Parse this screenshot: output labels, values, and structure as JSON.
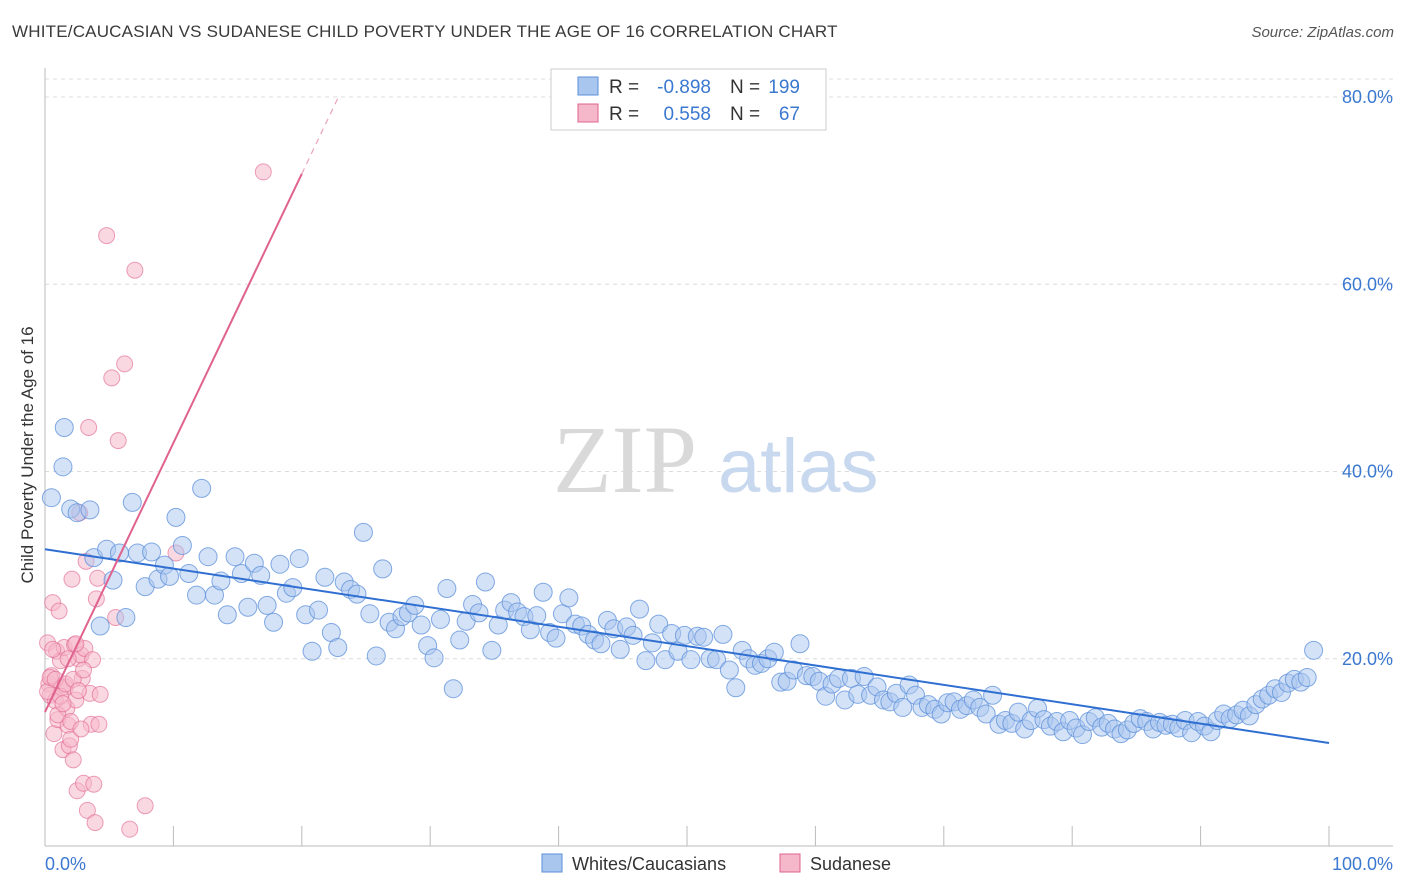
{
  "title": "WHITE/CAUCASIAN VS SUDANESE CHILD POVERTY UNDER THE AGE OF 16 CORRELATION CHART",
  "source": "Source: ZipAtlas.com",
  "watermark": {
    "zip": "ZIP",
    "atlas": "atlas"
  },
  "colors": {
    "blue": "#5b8fd9",
    "blue_fill": "#a9c6ef",
    "pink": "#e0628e",
    "pink_fill": "#f5b8cb",
    "axis_text": "#3b78d0",
    "grid": "#d8d8d8"
  },
  "legend": {
    "rows": [
      {
        "r_label": "R =",
        "r_value": "-0.898",
        "n_label": "N =",
        "n_value": "199"
      },
      {
        "r_label": "R =",
        "r_value": "0.558",
        "n_label": "N =",
        "n_value": "67"
      }
    ]
  },
  "bottom_legend": [
    "Whites/Caucasians",
    "Sudanese"
  ],
  "chart_data": {
    "type": "scatter",
    "ylabel": "Child Poverty Under the Age of 16",
    "xlim": [
      0,
      100
    ],
    "ylim": [
      0,
      82
    ],
    "y_ticks": [
      20,
      40,
      60,
      80
    ],
    "y_tick_labels": [
      "20.0%",
      "40.0%",
      "60.0%",
      "80.0%"
    ],
    "x_tick_labels": [
      "0.0%",
      "100.0%"
    ],
    "grid": true,
    "series": [
      {
        "name": "Whites/Caucasians",
        "trend": {
          "x": [
            0,
            100
          ],
          "y": [
            31.7,
            11.0
          ]
        },
        "points": [
          [
            0.5,
            37.2
          ],
          [
            1.4,
            40.5
          ],
          [
            1.5,
            44.7
          ],
          [
            2.0,
            36.0
          ],
          [
            2.5,
            35.6
          ],
          [
            3.5,
            35.9
          ],
          [
            3.8,
            30.8
          ],
          [
            4.3,
            23.5
          ],
          [
            4.8,
            31.7
          ],
          [
            5.3,
            28.4
          ],
          [
            5.8,
            31.3
          ],
          [
            6.3,
            24.4
          ],
          [
            6.8,
            36.7
          ],
          [
            7.2,
            31.3
          ],
          [
            7.8,
            27.7
          ],
          [
            8.3,
            31.4
          ],
          [
            8.8,
            28.5
          ],
          [
            9.3,
            30.0
          ],
          [
            9.7,
            28.8
          ],
          [
            10.2,
            35.1
          ],
          [
            10.7,
            32.1
          ],
          [
            11.2,
            29.1
          ],
          [
            11.8,
            26.8
          ],
          [
            12.2,
            38.2
          ],
          [
            12.7,
            30.9
          ],
          [
            13.2,
            26.8
          ],
          [
            13.7,
            28.3
          ],
          [
            14.2,
            24.7
          ],
          [
            14.8,
            30.9
          ],
          [
            15.3,
            29.1
          ],
          [
            15.8,
            25.5
          ],
          [
            16.3,
            30.2
          ],
          [
            16.8,
            28.9
          ],
          [
            17.3,
            25.7
          ],
          [
            17.8,
            23.9
          ],
          [
            18.3,
            30.1
          ],
          [
            18.8,
            27.0
          ],
          [
            19.3,
            27.6
          ],
          [
            19.8,
            30.7
          ],
          [
            20.3,
            24.7
          ],
          [
            20.8,
            20.8
          ],
          [
            21.3,
            25.2
          ],
          [
            21.8,
            28.7
          ],
          [
            22.3,
            22.8
          ],
          [
            22.8,
            21.2
          ],
          [
            23.3,
            28.2
          ],
          [
            23.8,
            27.4
          ],
          [
            24.3,
            26.9
          ],
          [
            24.8,
            33.5
          ],
          [
            25.3,
            24.8
          ],
          [
            25.8,
            20.3
          ],
          [
            26.3,
            29.6
          ],
          [
            26.8,
            23.9
          ],
          [
            27.3,
            23.2
          ],
          [
            27.8,
            24.5
          ],
          [
            28.3,
            24.9
          ],
          [
            28.8,
            25.7
          ],
          [
            29.3,
            23.6
          ],
          [
            29.8,
            21.4
          ],
          [
            30.3,
            20.1
          ],
          [
            30.8,
            24.2
          ],
          [
            31.3,
            27.5
          ],
          [
            31.8,
            16.8
          ],
          [
            32.3,
            22.0
          ],
          [
            32.8,
            24.0
          ],
          [
            33.3,
            25.8
          ],
          [
            33.8,
            24.9
          ],
          [
            34.3,
            28.2
          ],
          [
            34.8,
            20.9
          ],
          [
            35.3,
            23.6
          ],
          [
            35.8,
            25.2
          ],
          [
            36.3,
            26.0
          ],
          [
            36.8,
            25.0
          ],
          [
            37.3,
            24.5
          ],
          [
            37.8,
            23.1
          ],
          [
            38.3,
            24.6
          ],
          [
            38.8,
            27.1
          ],
          [
            39.3,
            22.8
          ],
          [
            39.8,
            22.2
          ],
          [
            40.3,
            24.8
          ],
          [
            40.8,
            26.5
          ],
          [
            41.3,
            23.7
          ],
          [
            41.8,
            23.5
          ],
          [
            42.3,
            22.6
          ],
          [
            42.8,
            22.0
          ],
          [
            43.3,
            21.6
          ],
          [
            43.8,
            24.1
          ],
          [
            44.3,
            23.2
          ],
          [
            44.8,
            21.0
          ],
          [
            45.3,
            23.4
          ],
          [
            45.8,
            22.5
          ],
          [
            46.3,
            25.3
          ],
          [
            46.8,
            19.8
          ],
          [
            47.3,
            21.7
          ],
          [
            47.8,
            23.7
          ],
          [
            48.3,
            19.9
          ],
          [
            48.8,
            22.7
          ],
          [
            49.3,
            20.8
          ],
          [
            49.8,
            22.5
          ],
          [
            50.3,
            19.9
          ],
          [
            50.8,
            22.4
          ],
          [
            51.3,
            22.3
          ],
          [
            51.8,
            20.0
          ],
          [
            52.3,
            19.9
          ],
          [
            52.8,
            22.6
          ],
          [
            53.3,
            18.8
          ],
          [
            53.8,
            16.9
          ],
          [
            54.3,
            20.9
          ],
          [
            54.8,
            20.0
          ],
          [
            55.3,
            19.3
          ],
          [
            55.8,
            19.5
          ],
          [
            56.3,
            20.0
          ],
          [
            56.8,
            20.7
          ],
          [
            57.3,
            17.5
          ],
          [
            57.8,
            17.6
          ],
          [
            58.3,
            18.8
          ],
          [
            58.8,
            21.6
          ],
          [
            59.3,
            18.2
          ],
          [
            59.8,
            18.1
          ],
          [
            60.3,
            17.6
          ],
          [
            60.8,
            16.0
          ],
          [
            61.3,
            17.3
          ],
          [
            61.8,
            17.9
          ],
          [
            62.3,
            15.6
          ],
          [
            62.8,
            17.9
          ],
          [
            63.3,
            16.2
          ],
          [
            63.8,
            18.1
          ],
          [
            64.3,
            16.1
          ],
          [
            64.8,
            17.0
          ],
          [
            65.3,
            15.6
          ],
          [
            65.8,
            15.4
          ],
          [
            66.3,
            16.3
          ],
          [
            66.8,
            14.8
          ],
          [
            67.3,
            17.2
          ],
          [
            67.8,
            16.1
          ],
          [
            68.3,
            14.8
          ],
          [
            68.8,
            15.1
          ],
          [
            69.3,
            14.6
          ],
          [
            69.8,
            14.1
          ],
          [
            70.3,
            15.3
          ],
          [
            70.8,
            15.4
          ],
          [
            71.3,
            14.6
          ],
          [
            71.8,
            15.0
          ],
          [
            72.3,
            15.6
          ],
          [
            72.8,
            14.8
          ],
          [
            73.3,
            14.1
          ],
          [
            73.8,
            16.1
          ],
          [
            74.3,
            13.0
          ],
          [
            74.8,
            13.4
          ],
          [
            75.3,
            13.1
          ],
          [
            75.8,
            14.3
          ],
          [
            76.3,
            12.5
          ],
          [
            76.8,
            13.4
          ],
          [
            77.3,
            14.7
          ],
          [
            77.8,
            13.5
          ],
          [
            78.3,
            12.8
          ],
          [
            78.8,
            13.3
          ],
          [
            79.3,
            12.2
          ],
          [
            79.8,
            13.4
          ],
          [
            80.3,
            12.6
          ],
          [
            80.8,
            11.9
          ],
          [
            81.3,
            13.3
          ],
          [
            81.8,
            13.7
          ],
          [
            82.3,
            12.7
          ],
          [
            82.8,
            13.1
          ],
          [
            83.3,
            12.5
          ],
          [
            83.8,
            12.0
          ],
          [
            84.3,
            12.4
          ],
          [
            84.8,
            13.1
          ],
          [
            85.3,
            13.6
          ],
          [
            85.8,
            13.3
          ],
          [
            86.3,
            12.5
          ],
          [
            86.8,
            13.2
          ],
          [
            87.3,
            12.9
          ],
          [
            87.8,
            13.0
          ],
          [
            88.3,
            12.6
          ],
          [
            88.8,
            13.4
          ],
          [
            89.3,
            12.1
          ],
          [
            89.8,
            13.3
          ],
          [
            90.3,
            12.8
          ],
          [
            90.8,
            12.2
          ],
          [
            91.3,
            13.4
          ],
          [
            91.8,
            14.1
          ],
          [
            92.3,
            13.6
          ],
          [
            92.8,
            14.0
          ],
          [
            93.3,
            14.5
          ],
          [
            93.8,
            13.9
          ],
          [
            94.3,
            15.1
          ],
          [
            94.8,
            15.7
          ],
          [
            95.3,
            16.1
          ],
          [
            95.8,
            16.8
          ],
          [
            96.3,
            16.4
          ],
          [
            96.8,
            17.4
          ],
          [
            97.3,
            17.8
          ],
          [
            97.8,
            17.5
          ],
          [
            98.3,
            18.0
          ],
          [
            98.8,
            20.9
          ]
        ]
      },
      {
        "name": "Sudanese",
        "trend": {
          "x": [
            0,
            20
          ],
          "y": [
            14.3,
            71.8
          ]
        },
        "points": [
          [
            0.2,
            21.7
          ],
          [
            0.3,
            17.3
          ],
          [
            0.4,
            16.1
          ],
          [
            0.5,
            18.2
          ],
          [
            0.6,
            26.0
          ],
          [
            0.7,
            12.0
          ],
          [
            0.8,
            15.5
          ],
          [
            0.9,
            20.8
          ],
          [
            1.0,
            13.5
          ],
          [
            1.1,
            25.1
          ],
          [
            1.2,
            19.8
          ],
          [
            1.3,
            16.9
          ],
          [
            1.4,
            10.3
          ],
          [
            1.5,
            21.2
          ],
          [
            1.6,
            17.0
          ],
          [
            1.7,
            14.7
          ],
          [
            1.8,
            12.9
          ],
          [
            1.9,
            10.7
          ],
          [
            2.0,
            11.4
          ],
          [
            2.1,
            28.5
          ],
          [
            2.2,
            9.2
          ],
          [
            2.3,
            21.5
          ],
          [
            2.4,
            15.6
          ],
          [
            2.5,
            5.9
          ],
          [
            2.6,
            20.0
          ],
          [
            2.7,
            35.6
          ],
          [
            2.8,
            20.4
          ],
          [
            2.9,
            17.9
          ],
          [
            3.0,
            6.7
          ],
          [
            3.1,
            21.1
          ],
          [
            3.2,
            30.4
          ],
          [
            3.3,
            3.8
          ],
          [
            3.4,
            44.7
          ],
          [
            3.5,
            16.3
          ],
          [
            3.6,
            13.0
          ],
          [
            3.7,
            19.9
          ],
          [
            3.8,
            6.6
          ],
          [
            3.9,
            2.5
          ],
          [
            4.0,
            26.4
          ],
          [
            4.1,
            28.6
          ],
          [
            4.2,
            13.0
          ],
          [
            4.3,
            16.2
          ],
          [
            4.8,
            65.2
          ],
          [
            5.2,
            50.0
          ],
          [
            5.5,
            24.4
          ],
          [
            5.7,
            43.3
          ],
          [
            6.2,
            51.5
          ],
          [
            6.6,
            1.8
          ],
          [
            7.0,
            61.5
          ],
          [
            7.8,
            4.3
          ],
          [
            10.2,
            31.3
          ],
          [
            17.0,
            72.0
          ],
          [
            0.2,
            16.5
          ],
          [
            0.4,
            18.0
          ],
          [
            0.6,
            21.0
          ],
          [
            0.8,
            17.8
          ],
          [
            1.0,
            14.0
          ],
          [
            1.2,
            16.0
          ],
          [
            1.4,
            15.2
          ],
          [
            1.6,
            17.3
          ],
          [
            1.8,
            20.0
          ],
          [
            2.0,
            13.3
          ],
          [
            2.2,
            17.8
          ],
          [
            2.4,
            21.6
          ],
          [
            2.6,
            16.6
          ],
          [
            2.8,
            12.5
          ],
          [
            3.0,
            18.8
          ]
        ]
      }
    ]
  }
}
